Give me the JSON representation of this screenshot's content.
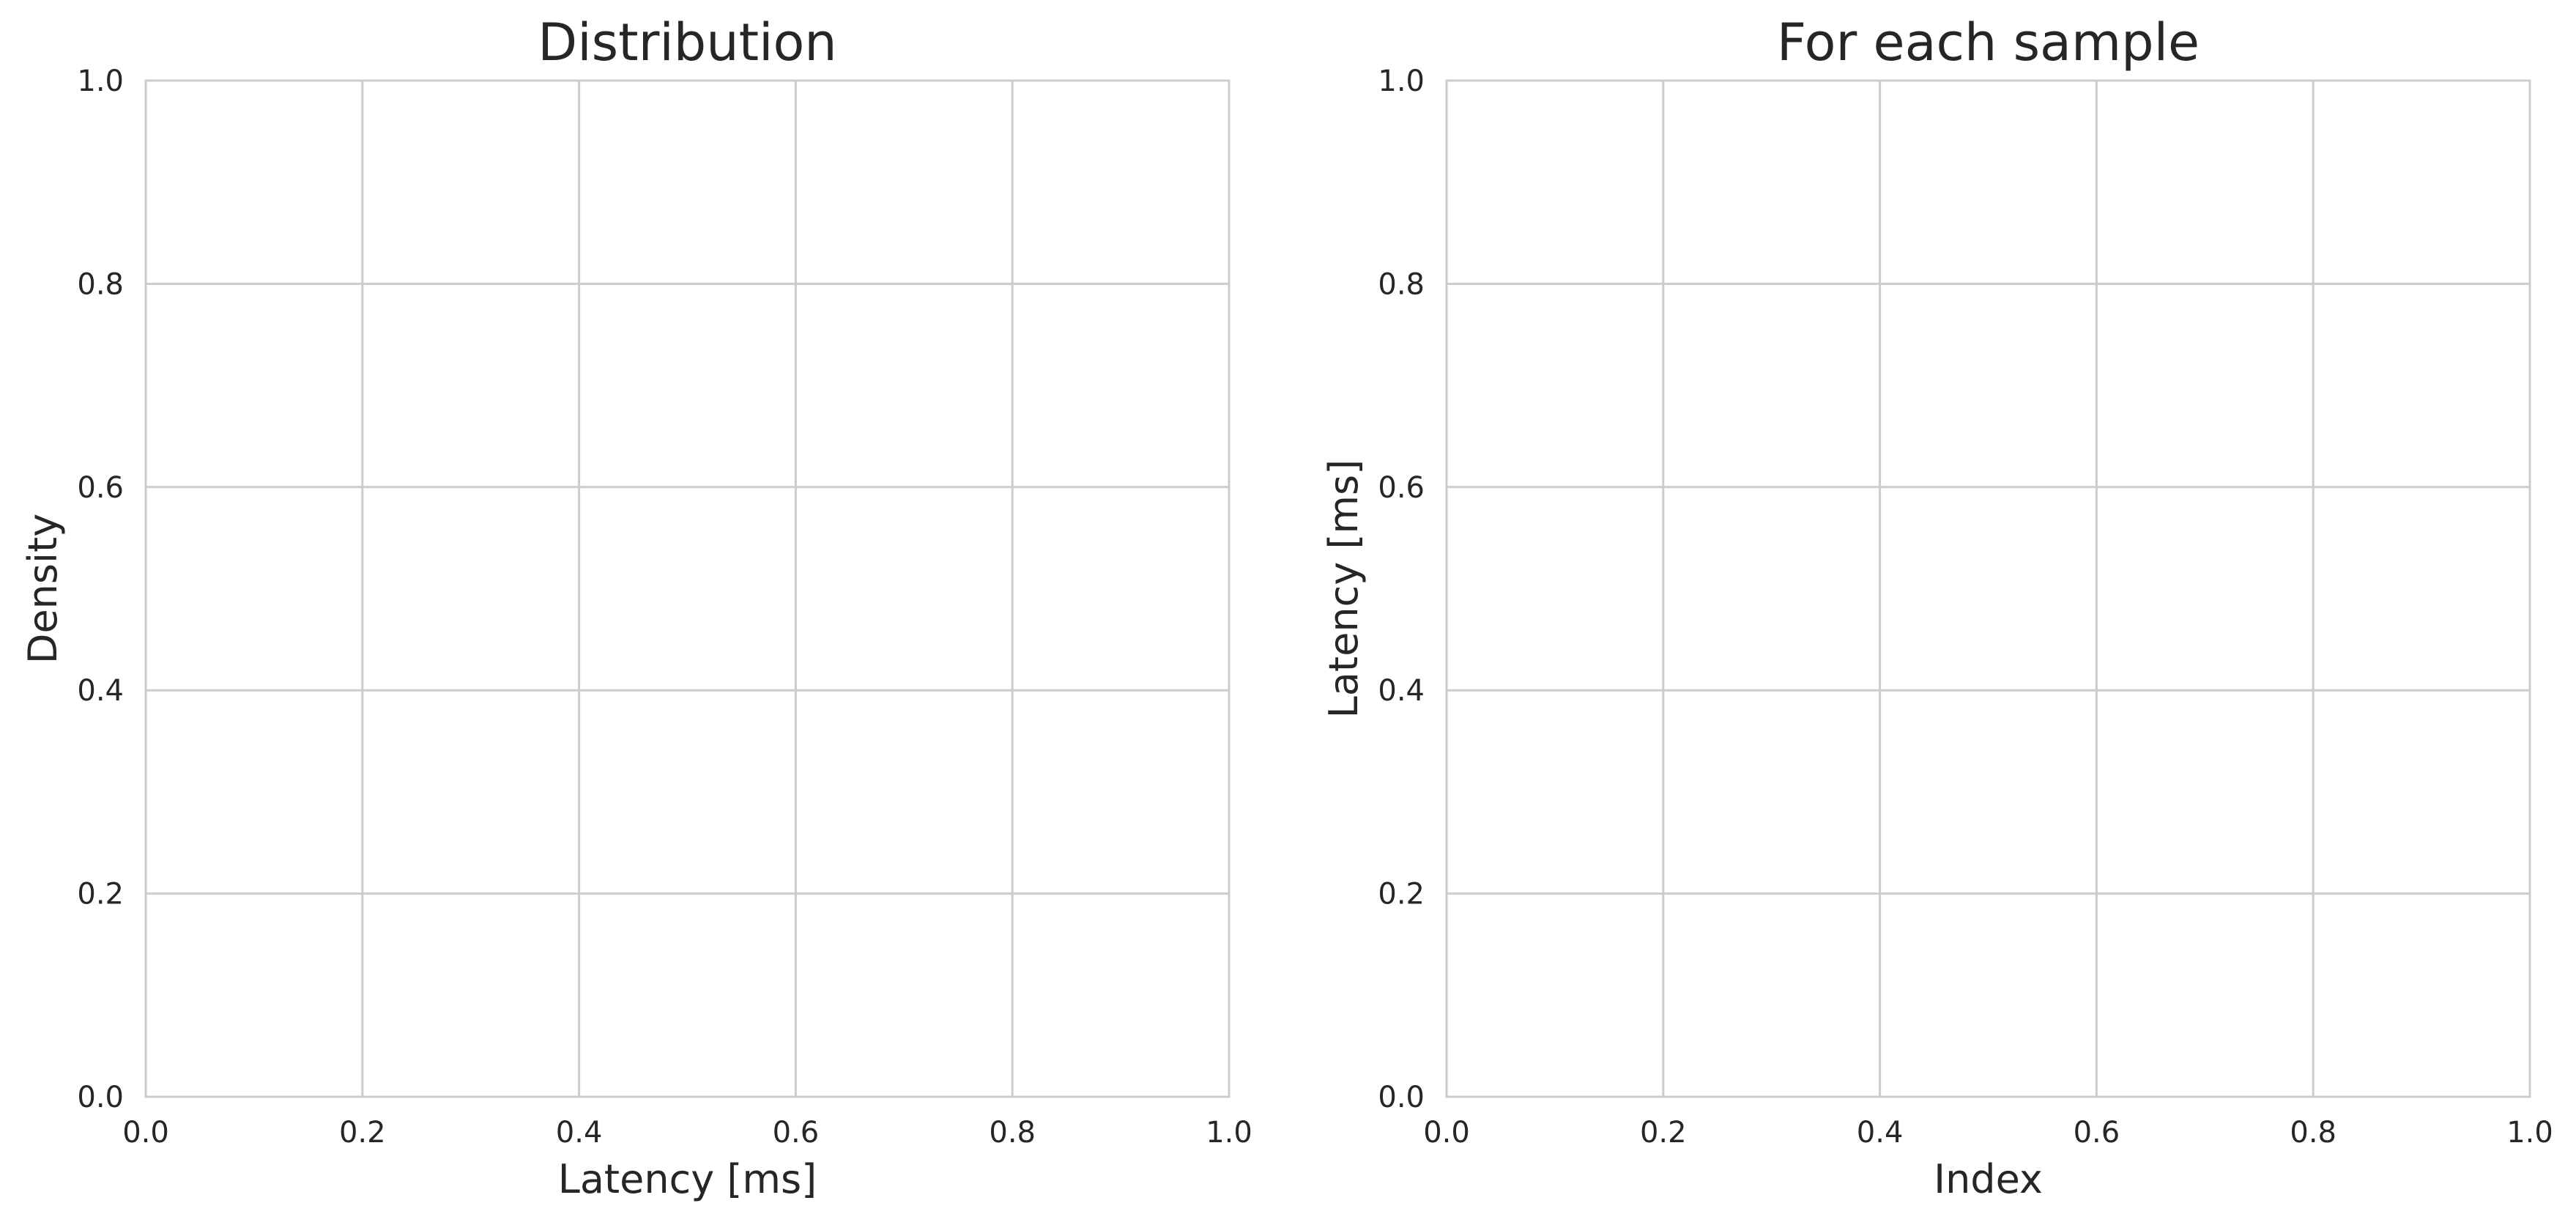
{
  "chart_data": [
    {
      "type": "line",
      "title": "Distribution",
      "xlabel": "Latency [ms]",
      "ylabel": "Density",
      "xlim": [
        0.0,
        1.0
      ],
      "ylim": [
        0.0,
        1.0
      ],
      "xticks": [
        "0.0",
        "0.2",
        "0.4",
        "0.6",
        "0.8",
        "1.0"
      ],
      "yticks": [
        "0.0",
        "0.2",
        "0.4",
        "0.6",
        "0.8",
        "1.0"
      ],
      "grid": true,
      "series": []
    },
    {
      "type": "line",
      "title": "For each sample",
      "xlabel": "Index",
      "ylabel": "Latency [ms]",
      "xlim": [
        0.0,
        1.0
      ],
      "ylim": [
        0.0,
        1.0
      ],
      "xticks": [
        "0.0",
        "0.2",
        "0.4",
        "0.6",
        "0.8",
        "1.0"
      ],
      "yticks": [
        "0.0",
        "0.2",
        "0.4",
        "0.6",
        "0.8",
        "1.0"
      ],
      "grid": true,
      "series": []
    }
  ]
}
